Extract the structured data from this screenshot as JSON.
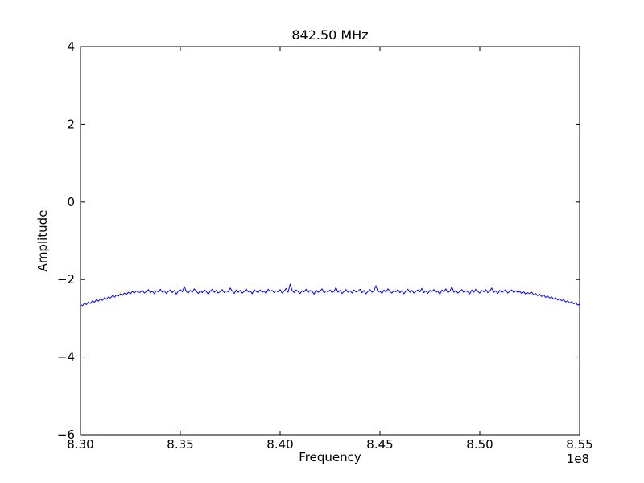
{
  "chart_data": {
    "type": "line",
    "title": "842.50 MHz",
    "xlabel": "Frequency",
    "ylabel": "Amplitude",
    "x_offset_label": "1e8",
    "xlim": [
      830000000,
      855000000
    ],
    "ylim": [
      -6,
      4
    ],
    "grid": false,
    "legend": "none",
    "line_color": "#0000ff",
    "xticks": {
      "values": [
        830000000,
        835000000,
        840000000,
        845000000,
        850000000,
        855000000
      ],
      "labels": [
        "8.30",
        "8.35",
        "8.40",
        "8.45",
        "8.50",
        "8.55"
      ]
    },
    "yticks": {
      "values": [
        4,
        2,
        0,
        -2,
        -4,
        -6
      ],
      "labels": [
        "4",
        "2",
        "0",
        "−2",
        "−4",
        "−6"
      ]
    },
    "x_start": 830000000,
    "x_step": 100000,
    "y": [
      -2.64,
      -2.68,
      -2.61,
      -2.65,
      -2.58,
      -2.62,
      -2.55,
      -2.59,
      -2.52,
      -2.56,
      -2.5,
      -2.54,
      -2.47,
      -2.51,
      -2.45,
      -2.48,
      -2.42,
      -2.46,
      -2.4,
      -2.43,
      -2.37,
      -2.41,
      -2.35,
      -2.39,
      -2.33,
      -2.37,
      -2.31,
      -2.35,
      -2.29,
      -2.33,
      -2.33,
      -2.28,
      -2.35,
      -2.31,
      -2.26,
      -2.34,
      -2.3,
      -2.37,
      -2.29,
      -2.32,
      -2.25,
      -2.33,
      -2.29,
      -2.36,
      -2.31,
      -2.27,
      -2.34,
      -2.28,
      -2.38,
      -2.3,
      -2.26,
      -2.32,
      -2.18,
      -2.31,
      -2.35,
      -2.28,
      -2.33,
      -2.24,
      -2.3,
      -2.36,
      -2.29,
      -2.34,
      -2.27,
      -2.31,
      -2.38,
      -2.3,
      -2.25,
      -2.33,
      -2.28,
      -2.35,
      -2.31,
      -2.26,
      -2.34,
      -2.29,
      -2.32,
      -2.22,
      -2.3,
      -2.36,
      -2.27,
      -2.33,
      -2.28,
      -2.35,
      -2.31,
      -2.24,
      -2.32,
      -2.29,
      -2.37,
      -2.26,
      -2.31,
      -2.34,
      -2.27,
      -2.33,
      -2.3,
      -2.36,
      -2.25,
      -2.31,
      -2.28,
      -2.34,
      -2.29,
      -2.32,
      -2.26,
      -2.35,
      -2.3,
      -2.23,
      -2.33,
      -2.12,
      -2.28,
      -2.34,
      -2.27,
      -2.31,
      -2.36,
      -2.29,
      -2.32,
      -2.25,
      -2.34,
      -2.28,
      -2.31,
      -2.38,
      -2.27,
      -2.33,
      -2.3,
      -2.24,
      -2.35,
      -2.29,
      -2.32,
      -2.27,
      -2.34,
      -2.3,
      -2.21,
      -2.33,
      -2.28,
      -2.36,
      -2.31,
      -2.26,
      -2.33,
      -2.29,
      -2.35,
      -2.27,
      -2.32,
      -2.3,
      -2.25,
      -2.34,
      -2.28,
      -2.37,
      -2.31,
      -2.26,
      -2.33,
      -2.29,
      -2.16,
      -2.32,
      -2.3,
      -2.36,
      -2.27,
      -2.33,
      -2.24,
      -2.31,
      -2.35,
      -2.28,
      -2.32,
      -2.26,
      -2.34,
      -2.29,
      -2.37,
      -2.3,
      -2.25,
      -2.33,
      -2.28,
      -2.35,
      -2.31,
      -2.27,
      -2.32,
      -2.23,
      -2.34,
      -2.29,
      -2.36,
      -2.28,
      -2.31,
      -2.26,
      -2.33,
      -2.3,
      -2.38,
      -2.27,
      -2.32,
      -2.24,
      -2.34,
      -2.3,
      -2.19,
      -2.33,
      -2.28,
      -2.35,
      -2.31,
      -2.26,
      -2.34,
      -2.29,
      -2.32,
      -2.37,
      -2.27,
      -2.33,
      -2.25,
      -2.31,
      -2.35,
      -2.28,
      -2.32,
      -2.26,
      -2.34,
      -2.3,
      -2.22,
      -2.33,
      -2.29,
      -2.36,
      -2.28,
      -2.33,
      -2.3,
      -2.26,
      -2.35,
      -2.31,
      -2.27,
      -2.34,
      -2.29,
      -2.33,
      -2.31,
      -2.36,
      -2.32,
      -2.38,
      -2.34,
      -2.37,
      -2.33,
      -2.4,
      -2.36,
      -2.42,
      -2.38,
      -2.44,
      -2.4,
      -2.46,
      -2.43,
      -2.48,
      -2.45,
      -2.51,
      -2.47,
      -2.53,
      -2.5,
      -2.55,
      -2.52,
      -2.58,
      -2.55,
      -2.61,
      -2.57,
      -2.63,
      -2.6,
      -2.66,
      -2.64
    ]
  }
}
